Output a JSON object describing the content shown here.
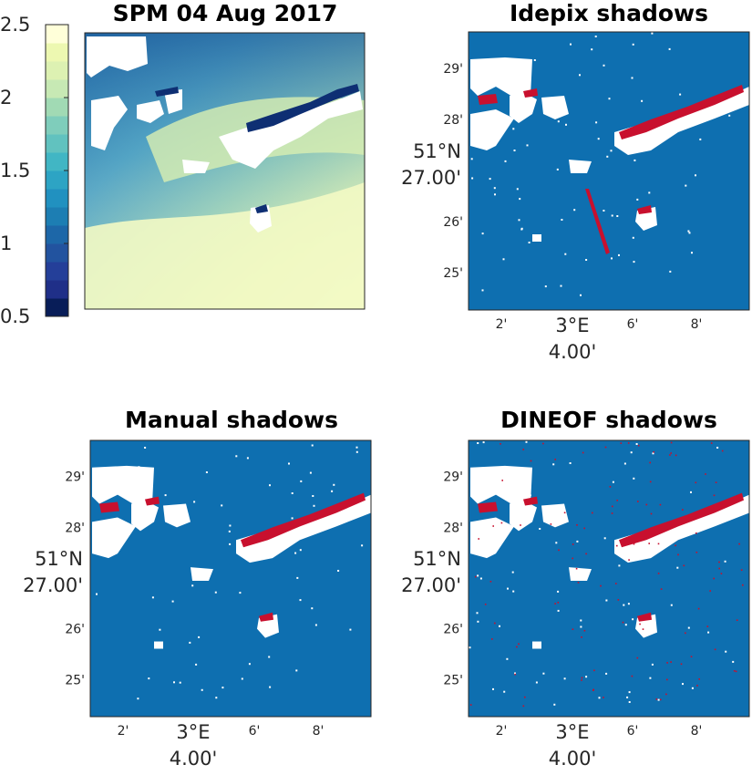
{
  "chart_data": [
    {
      "type": "heatmap",
      "title": "SPM 04 Aug 2017",
      "colorbar": {
        "ticks": [
          "0.5",
          "1",
          "1.5",
          "2",
          "2.5"
        ],
        "range": [
          0.5,
          2.5
        ],
        "colors": [
          "#081d58",
          "#1f2f88",
          "#243f99",
          "#22539f",
          "#1d67a8",
          "#1d7eb3",
          "#2191c0",
          "#2da4c4",
          "#41b6c4",
          "#61c2bf",
          "#7fcdbb",
          "#a1dab4",
          "#c7e9b4",
          "#ddf1b2",
          "#edf8b1",
          "#ffffd9"
        ]
      }
    },
    {
      "type": "heatmap",
      "title": "Idepix shadows",
      "y_ticks": [
        "29'",
        "28'",
        "26'",
        "25'"
      ],
      "y_center_label": [
        "51°N",
        "27.00'"
      ],
      "x_ticks": [
        "2'",
        "6'",
        "8'"
      ],
      "x_center_label": [
        "3°E",
        "4.00'"
      ]
    },
    {
      "type": "heatmap",
      "title": "Manual shadows",
      "y_ticks": [
        "29'",
        "28'",
        "26'",
        "25'"
      ],
      "y_center_label": [
        "51°N",
        "27.00'"
      ],
      "x_ticks": [
        "2'",
        "6'",
        "8'"
      ],
      "x_center_label": [
        "3°E",
        "4.00'"
      ]
    },
    {
      "type": "heatmap",
      "title": "DINEOF shadows",
      "y_ticks": [
        "29'",
        "28'",
        "26'",
        "25'"
      ],
      "y_center_label": [
        "51°N",
        "27.00'"
      ],
      "x_ticks": [
        "2'",
        "6'",
        "8'"
      ],
      "x_center_label": [
        "3°E",
        "4.00'"
      ]
    }
  ],
  "colors": {
    "water": "#0e6fb0",
    "cloud": "#ffffff",
    "shadow": "#c8102e",
    "axis": "#262626"
  }
}
